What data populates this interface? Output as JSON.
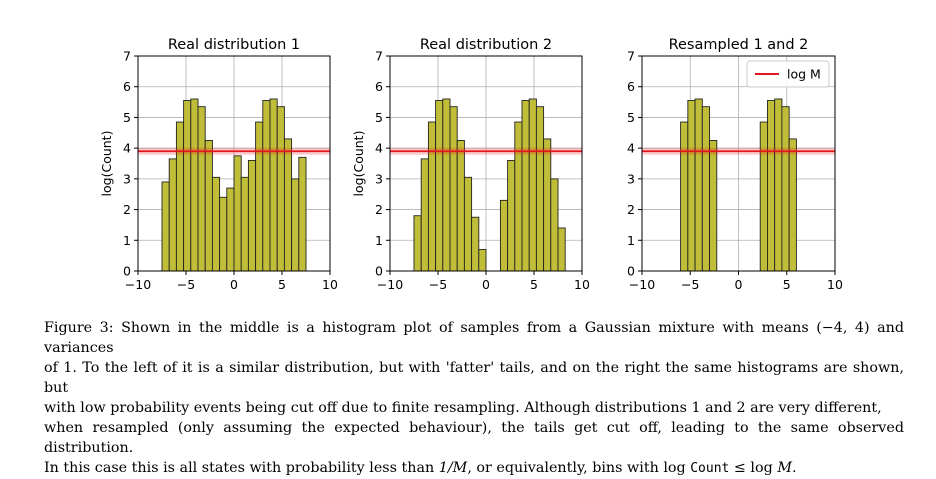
{
  "chart_data": [
    {
      "type": "bar",
      "title": "Real distribution 1",
      "ylabel": "log(Count)",
      "xlim": [
        -10,
        10
      ],
      "ylim": [
        0,
        7
      ],
      "xticks": [
        "−10",
        "−5",
        "0",
        "5",
        "10"
      ],
      "yticks": [
        "0",
        "1",
        "2",
        "3",
        "4",
        "5",
        "6",
        "7"
      ],
      "grid": true,
      "bar_color": "#c0be38",
      "bin_width": 0.75,
      "bins": [
        {
          "x0": -7.5,
          "value": 2.9
        },
        {
          "x0": -6.75,
          "value": 3.65
        },
        {
          "x0": -6.0,
          "value": 4.85
        },
        {
          "x0": -5.25,
          "value": 5.55
        },
        {
          "x0": -4.5,
          "value": 5.6
        },
        {
          "x0": -3.75,
          "value": 5.35
        },
        {
          "x0": -3.0,
          "value": 4.25
        },
        {
          "x0": -2.25,
          "value": 3.05
        },
        {
          "x0": -1.5,
          "value": 2.4
        },
        {
          "x0": -0.75,
          "value": 2.7
        },
        {
          "x0": 0.0,
          "value": 3.75
        },
        {
          "x0": 0.75,
          "value": 3.05
        },
        {
          "x0": 1.5,
          "value": 3.6
        },
        {
          "x0": 2.25,
          "value": 4.85
        },
        {
          "x0": 3.0,
          "value": 5.55
        },
        {
          "x0": 3.75,
          "value": 5.6
        },
        {
          "x0": 4.5,
          "value": 5.35
        },
        {
          "x0": 5.25,
          "value": 4.3
        },
        {
          "x0": 6.0,
          "value": 3.0
        },
        {
          "x0": 6.75,
          "value": 3.7
        }
      ],
      "hline": {
        "y": 3.9,
        "color": "#e8141c"
      }
    },
    {
      "type": "bar",
      "title": "Real distribution 2",
      "ylabel": "log(Count)",
      "xlim": [
        -10,
        10
      ],
      "ylim": [
        0,
        7
      ],
      "xticks": [
        "−10",
        "−5",
        "0",
        "5",
        "10"
      ],
      "yticks": [
        "0",
        "1",
        "2",
        "3",
        "4",
        "5",
        "6",
        "7"
      ],
      "grid": true,
      "bar_color": "#c0be38",
      "bin_width": 0.75,
      "bins": [
        {
          "x0": -7.5,
          "value": 1.8
        },
        {
          "x0": -6.75,
          "value": 3.65
        },
        {
          "x0": -6.0,
          "value": 4.85
        },
        {
          "x0": -5.25,
          "value": 5.55
        },
        {
          "x0": -4.5,
          "value": 5.6
        },
        {
          "x0": -3.75,
          "value": 5.35
        },
        {
          "x0": -3.0,
          "value": 4.25
        },
        {
          "x0": -2.25,
          "value": 3.05
        },
        {
          "x0": -1.5,
          "value": 1.75
        },
        {
          "x0": -0.75,
          "value": 0.7
        },
        {
          "x0": 1.5,
          "value": 2.3
        },
        {
          "x0": 2.25,
          "value": 3.6
        },
        {
          "x0": 3.0,
          "value": 4.85
        },
        {
          "x0": 3.75,
          "value": 5.55
        },
        {
          "x0": 4.5,
          "value": 5.6
        },
        {
          "x0": 5.25,
          "value": 5.35
        },
        {
          "x0": 6.0,
          "value": 4.3
        },
        {
          "x0": 6.75,
          "value": 3.0
        },
        {
          "x0": 7.5,
          "value": 1.4
        }
      ],
      "hline": {
        "y": 3.9,
        "color": "#e8141c"
      }
    },
    {
      "type": "bar",
      "title": "Resampled 1 and 2",
      "xlim": [
        -10,
        10
      ],
      "ylim": [
        0,
        7
      ],
      "xticks": [
        "−10",
        "−5",
        "0",
        "5",
        "10"
      ],
      "yticks": [
        "0",
        "1",
        "2",
        "3",
        "4",
        "5",
        "6",
        "7"
      ],
      "grid": true,
      "bar_color": "#c0be38",
      "bin_width": 0.75,
      "bins": [
        {
          "x0": -6.0,
          "value": 4.85
        },
        {
          "x0": -5.25,
          "value": 5.55
        },
        {
          "x0": -4.5,
          "value": 5.6
        },
        {
          "x0": -3.75,
          "value": 5.35
        },
        {
          "x0": -3.0,
          "value": 4.25
        },
        {
          "x0": 2.25,
          "value": 4.85
        },
        {
          "x0": 3.0,
          "value": 5.55
        },
        {
          "x0": 3.75,
          "value": 5.6
        },
        {
          "x0": 4.5,
          "value": 5.35
        },
        {
          "x0": 5.25,
          "value": 4.3
        }
      ],
      "hline": {
        "y": 3.9,
        "color": "#e8141c"
      },
      "legend": {
        "position": "top-right",
        "entries": [
          "log M"
        ]
      }
    }
  ],
  "caption": {
    "line1": "Figure 3: Shown in the middle is a histogram plot of samples from a Gaussian mixture with means (−4, 4) and variances",
    "line2": "of 1. To the left of it is a similar distribution, but with 'fatter' tails, and on the right the same histograms are shown, but",
    "line3": "with low probability events being cut off due to finite resampling. Although distributions 1 and 2 are very different,",
    "line4": "when resampled (only assuming the expected behaviour), the tails get cut off, leading to the same observed distribution.",
    "line5a": "In this case this is all states with probability less than ",
    "line5_frac": "1/M",
    "line5b": ", or equivalently, bins with log ",
    "line5_mono": "Count",
    "line5c": " ≤ log ",
    "line5_M": "M",
    "line5d": "."
  }
}
